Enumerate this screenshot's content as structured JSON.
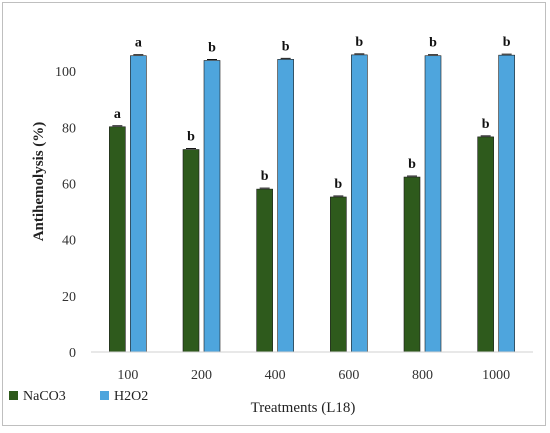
{
  "chart_data": {
    "type": "bar",
    "xlabel": "Treatments (L18)",
    "ylabel": "Antihemolysis (%)",
    "ylim": [
      0,
      120
    ],
    "yticks": [
      0,
      20,
      40,
      60,
      80,
      100
    ],
    "grid": false,
    "legend_position": "bottom-left",
    "categories": [
      "100",
      "200",
      "400",
      "600",
      "800",
      "1000"
    ],
    "series": [
      {
        "name": "NaCO3",
        "color": "#2e5a1c",
        "values": [
          80.2,
          72.1,
          58.0,
          55.2,
          62.3,
          76.6
        ],
        "labels": [
          "a",
          "b",
          "b",
          "b",
          "b",
          "b"
        ]
      },
      {
        "name": "H2O2",
        "color": "#4ea5dd",
        "values": [
          105.5,
          103.8,
          104.2,
          105.8,
          105.5,
          105.7
        ],
        "labels": [
          "a",
          "b",
          "b",
          "b",
          "b",
          "b"
        ]
      }
    ]
  }
}
